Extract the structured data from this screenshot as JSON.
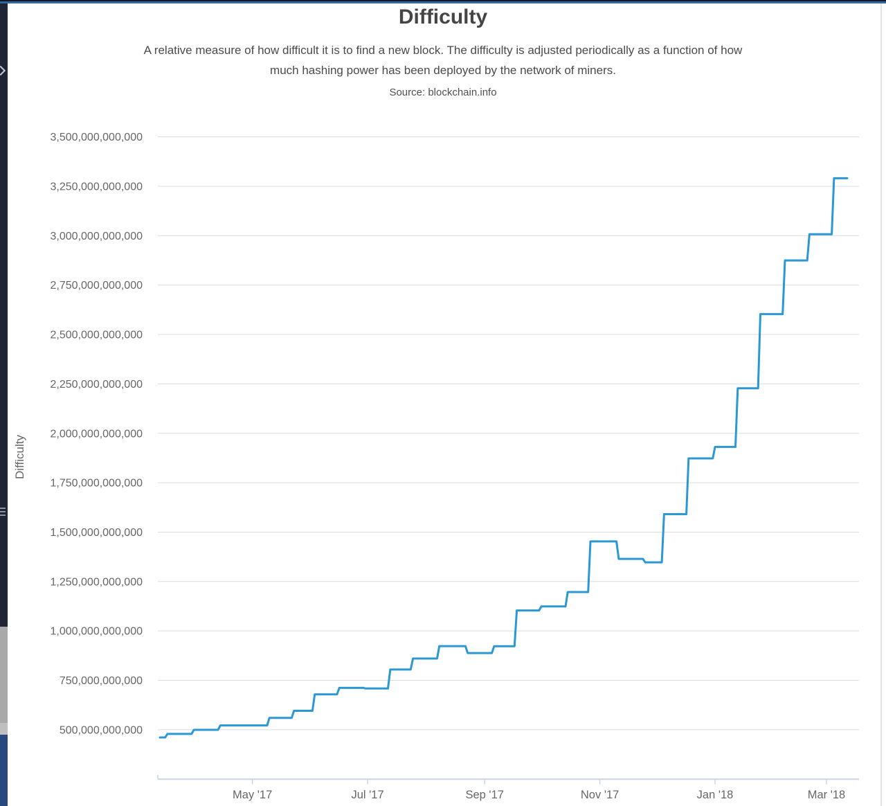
{
  "page": {
    "title": "Difficulty",
    "subtitle_lines": [
      "A relative measure of how difficult it is to find a new block. The difficulty is adjusted periodically as a function of how",
      "much hashing power has been deployed by the network of miners."
    ],
    "source": "Source: blockchain.info"
  },
  "chart_data": {
    "type": "line",
    "title": "Difficulty",
    "subtitle": "A relative measure of how difficult it is to find a new block. The difficulty is adjusted periodically as a function of how much hashing power has been deployed by the network of miners.",
    "source": "Source: blockchain.info",
    "xlabel": "",
    "ylabel": "Difficulty",
    "series_name": "Difficulty",
    "line_style": "step",
    "grid": "horizontal-only",
    "legend": "none",
    "colors": {
      "line": "#2b97d3",
      "grid": "#dcdcdc",
      "axis": "#c9d5e4",
      "labels": "#666666"
    },
    "x_range": [
      "2017-03-13",
      "2018-03-12"
    ],
    "ylim": [
      250000000000,
      3590000000000
    ],
    "y_ticks": [
      {
        "value": 500000000000,
        "label": "500,000,000,000"
      },
      {
        "value": 750000000000,
        "label": "750,000,000,000"
      },
      {
        "value": 1000000000000,
        "label": "1,000,000,000,000"
      },
      {
        "value": 1250000000000,
        "label": "1,250,000,000,000"
      },
      {
        "value": 1500000000000,
        "label": "1,500,000,000,000"
      },
      {
        "value": 1750000000000,
        "label": "1,750,000,000,000"
      },
      {
        "value": 2000000000000,
        "label": "2,000,000,000,000"
      },
      {
        "value": 2250000000000,
        "label": "2,250,000,000,000"
      },
      {
        "value": 2500000000000,
        "label": "2,500,000,000,000"
      },
      {
        "value": 2750000000000,
        "label": "2,750,000,000,000"
      },
      {
        "value": 3000000000000,
        "label": "3,000,000,000,000"
      },
      {
        "value": 3250000000000,
        "label": "3,250,000,000,000"
      },
      {
        "value": 3500000000000,
        "label": "3,500,000,000,000"
      }
    ],
    "x_ticks": [
      {
        "date": "2017-05-01",
        "label": "May '17"
      },
      {
        "date": "2017-07-01",
        "label": "Jul '17"
      },
      {
        "date": "2017-09-01",
        "label": "Sep '17"
      },
      {
        "date": "2017-11-01",
        "label": "Nov '17"
      },
      {
        "date": "2018-01-01",
        "label": "Jan '18"
      },
      {
        "date": "2018-03-01",
        "label": "Mar '18"
      }
    ],
    "points": [
      {
        "date": "2017-03-13",
        "value": 460769358091
      },
      {
        "date": "2017-03-17",
        "value": 478657534450
      },
      {
        "date": "2017-03-31",
        "value": 499635929817
      },
      {
        "date": "2017-04-14",
        "value": 521974519554
      },
      {
        "date": "2017-05-10",
        "value": 559970892891
      },
      {
        "date": "2017-05-23",
        "value": 595921917085
      },
      {
        "date": "2017-06-03",
        "value": 678760110083
      },
      {
        "date": "2017-06-16",
        "value": 711697198174
      },
      {
        "date": "2017-06-30",
        "value": 708659466230
      },
      {
        "date": "2017-07-13",
        "value": 804525194568
      },
      {
        "date": "2017-07-25",
        "value": 860221984436
      },
      {
        "date": "2017-08-08",
        "value": 923233068449
      },
      {
        "date": "2017-08-23",
        "value": 888171856257
      },
      {
        "date": "2017-09-06",
        "value": 922724699726
      },
      {
        "date": "2017-09-18",
        "value": 1103400932964
      },
      {
        "date": "2017-10-01",
        "value": 1123863285132
      },
      {
        "date": "2017-10-15",
        "value": 1196792694098
      },
      {
        "date": "2017-10-27",
        "value": 1452839779146
      },
      {
        "date": "2017-11-11",
        "value": 1364422081125
      },
      {
        "date": "2017-11-25",
        "value": 1347001430559
      },
      {
        "date": "2017-12-05",
        "value": 1590896927258
      },
      {
        "date": "2017-12-18",
        "value": 1873105475221
      },
      {
        "date": "2018-01-01",
        "value": 1931136454487
      },
      {
        "date": "2018-01-13",
        "value": 2227847638503
      },
      {
        "date": "2018-01-25",
        "value": 2603077300218
      },
      {
        "date": "2018-02-07",
        "value": 2874674234415
      },
      {
        "date": "2018-02-20",
        "value": 3007383866429
      },
      {
        "date": "2018-03-05",
        "value": 3290605988755
      },
      {
        "date": "2018-03-12",
        "value": 3290605988755
      }
    ]
  }
}
